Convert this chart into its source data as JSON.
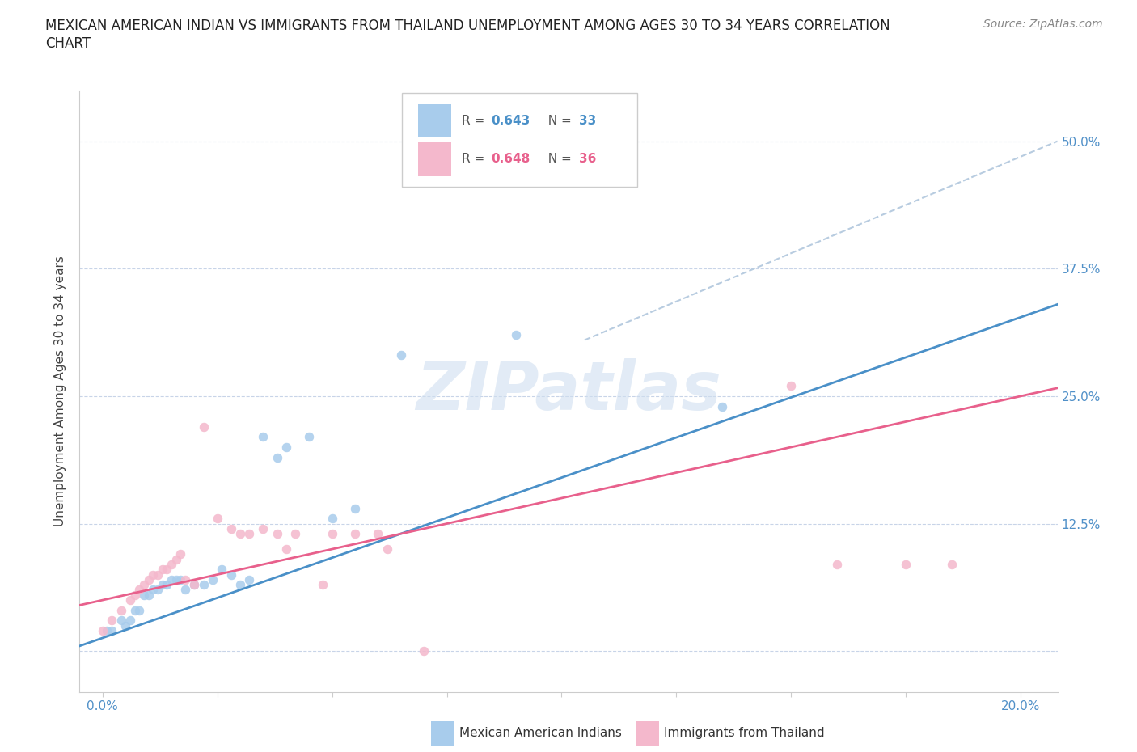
{
  "title_line1": "MEXICAN AMERICAN INDIAN VS IMMIGRANTS FROM THAILAND UNEMPLOYMENT AMONG AGES 30 TO 34 YEARS CORRELATION",
  "title_line2": "CHART",
  "source_text": "Source: ZipAtlas.com",
  "ylabel": "Unemployment Among Ages 30 to 34 years",
  "yticks": [
    0.0,
    0.125,
    0.25,
    0.375,
    0.5
  ],
  "ytick_labels": [
    "",
    "12.5%",
    "25.0%",
    "37.5%",
    "50.0%"
  ],
  "xlim": [
    -0.005,
    0.208
  ],
  "ylim": [
    -0.04,
    0.55
  ],
  "blue_color": "#a8ccec",
  "pink_color": "#f4b8cc",
  "blue_line_color": "#4a90c8",
  "pink_line_color": "#e8608c",
  "dashed_line_color": "#b8cce0",
  "watermark_color": "#d0dff0",
  "watermark_text": "ZIPatlas",
  "blue_scatter_x": [
    0.001,
    0.002,
    0.004,
    0.005,
    0.006,
    0.007,
    0.008,
    0.009,
    0.01,
    0.011,
    0.012,
    0.013,
    0.014,
    0.015,
    0.016,
    0.017,
    0.018,
    0.02,
    0.022,
    0.024,
    0.026,
    0.028,
    0.03,
    0.032,
    0.035,
    0.038,
    0.04,
    0.045,
    0.05,
    0.055,
    0.065,
    0.09,
    0.135
  ],
  "blue_scatter_y": [
    0.02,
    0.02,
    0.03,
    0.025,
    0.03,
    0.04,
    0.04,
    0.055,
    0.055,
    0.06,
    0.06,
    0.065,
    0.065,
    0.07,
    0.07,
    0.07,
    0.06,
    0.065,
    0.065,
    0.07,
    0.08,
    0.075,
    0.065,
    0.07,
    0.21,
    0.19,
    0.2,
    0.21,
    0.13,
    0.14,
    0.29,
    0.31,
    0.24
  ],
  "pink_scatter_x": [
    0.0,
    0.002,
    0.004,
    0.006,
    0.007,
    0.008,
    0.009,
    0.01,
    0.011,
    0.012,
    0.013,
    0.014,
    0.015,
    0.016,
    0.017,
    0.018,
    0.02,
    0.022,
    0.025,
    0.028,
    0.03,
    0.032,
    0.035,
    0.038,
    0.04,
    0.042,
    0.048,
    0.05,
    0.055,
    0.06,
    0.062,
    0.07,
    0.15,
    0.16,
    0.175,
    0.185
  ],
  "pink_scatter_y": [
    0.02,
    0.03,
    0.04,
    0.05,
    0.055,
    0.06,
    0.065,
    0.07,
    0.075,
    0.075,
    0.08,
    0.08,
    0.085,
    0.09,
    0.095,
    0.07,
    0.065,
    0.22,
    0.13,
    0.12,
    0.115,
    0.115,
    0.12,
    0.115,
    0.1,
    0.115,
    0.065,
    0.115,
    0.115,
    0.115,
    0.1,
    0.0,
    0.26,
    0.085,
    0.085,
    0.085
  ],
  "blue_trend_x": [
    -0.005,
    0.208
  ],
  "blue_trend_y": [
    0.005,
    0.34
  ],
  "pink_trend_x": [
    -0.005,
    0.208
  ],
  "pink_trend_y": [
    0.045,
    0.258
  ],
  "dashed_trend_x": [
    0.105,
    0.208
  ],
  "dashed_trend_y": [
    0.305,
    0.5
  ],
  "grid_color": "#c8d4e8",
  "bg_color": "#ffffff",
  "tick_color": "#5090c8",
  "title_fontsize": 12,
  "source_fontsize": 10,
  "axis_label_fontsize": 11,
  "tick_fontsize": 11,
  "legend_fontsize": 11,
  "scatter_size": 60
}
